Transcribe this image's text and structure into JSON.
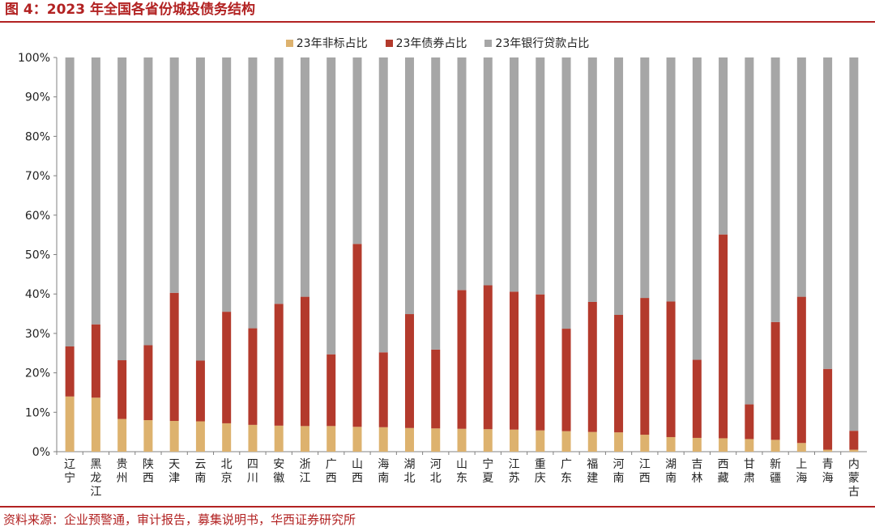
{
  "title": "图 4：2023 年全国各省份城投债务结构",
  "source": "资料来源：企业预警通，审计报告，募集说明书，华西证券研究所",
  "colors": {
    "accent": "#B22222",
    "nonstandard": "#DDB26E",
    "bond": "#B33A2C",
    "bank": "#A6A6A6"
  },
  "chart_data": {
    "type": "bar",
    "stacked": true,
    "legend_position": "top",
    "grid": false,
    "ylim": [
      0,
      100
    ],
    "yticks": [
      "0%",
      "10%",
      "20%",
      "30%",
      "40%",
      "50%",
      "60%",
      "70%",
      "80%",
      "90%",
      "100%"
    ],
    "categories": [
      "辽宁",
      "黑龙江",
      "贵州",
      "陕西",
      "天津",
      "云南",
      "北京",
      "四川",
      "安徽",
      "浙江",
      "广西",
      "山西",
      "海南",
      "湖北",
      "河北",
      "山东",
      "宁夏",
      "江苏",
      "重庆",
      "广东",
      "福建",
      "河南",
      "江西",
      "湖南",
      "吉林",
      "西藏",
      "甘肃",
      "新疆",
      "上海",
      "青海",
      "内蒙古"
    ],
    "series": [
      {
        "name": "23年非标占比",
        "color": "#DDB26E",
        "values": [
          14.0,
          13.7,
          8.3,
          8.0,
          7.8,
          7.7,
          7.2,
          6.8,
          6.6,
          6.5,
          6.5,
          6.3,
          6.2,
          6.0,
          5.9,
          5.8,
          5.7,
          5.6,
          5.4,
          5.2,
          5.0,
          4.9,
          4.3,
          3.7,
          3.5,
          3.4,
          3.2,
          3.0,
          2.2,
          0.5,
          0.5
        ]
      },
      {
        "name": "23年债券占比",
        "color": "#B33A2C",
        "values": [
          12.7,
          18.6,
          14.9,
          19.0,
          32.5,
          15.4,
          28.3,
          24.5,
          30.9,
          32.8,
          18.2,
          46.4,
          19.0,
          28.9,
          20.0,
          35.2,
          36.5,
          35.0,
          34.5,
          26.0,
          33.0,
          29.8,
          34.7,
          34.4,
          19.8,
          51.7,
          8.8,
          29.9,
          37.1,
          20.5,
          4.8
        ]
      },
      {
        "name": "23年银行贷款占比",
        "color": "#A6A6A6",
        "values": [
          73.3,
          67.7,
          76.8,
          73.0,
          59.7,
          76.9,
          64.5,
          68.7,
          62.5,
          60.7,
          75.3,
          47.3,
          74.8,
          65.1,
          74.1,
          59.0,
          57.8,
          59.4,
          60.1,
          68.8,
          62.0,
          65.3,
          61.0,
          61.9,
          76.7,
          44.9,
          88.0,
          67.1,
          60.7,
          79.0,
          94.7
        ]
      }
    ]
  }
}
